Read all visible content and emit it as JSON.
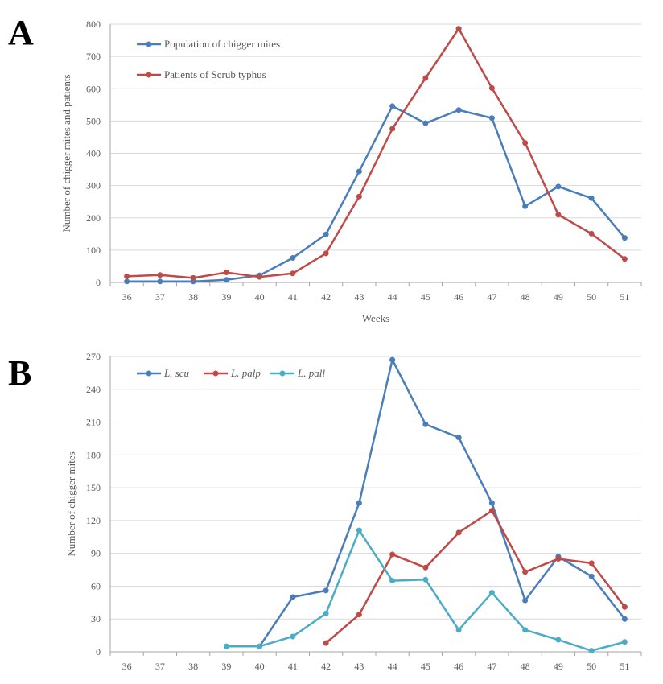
{
  "figure": {
    "panels": [
      "A",
      "B"
    ]
  },
  "chart_data": [
    {
      "type": "line",
      "panel": "A",
      "title": "",
      "xlabel": "Weeks",
      "ylabel": "Number of chigger mites and patients",
      "categories": [
        "36",
        "37",
        "38",
        "39",
        "40",
        "41",
        "42",
        "43",
        "44",
        "45",
        "46",
        "47",
        "48",
        "49",
        "50",
        "51"
      ],
      "ylim": [
        0,
        800
      ],
      "yticks": [
        0,
        100,
        200,
        300,
        400,
        500,
        600,
        700,
        800
      ],
      "grid": true,
      "legend": "top-left",
      "series": [
        {
          "name": "Population of chigger mites",
          "color": "#4a7ebb",
          "values": [
            3,
            3,
            3,
            8,
            22,
            76,
            149,
            344,
            546,
            493,
            534,
            509,
            236,
            297,
            261,
            138
          ]
        },
        {
          "name": "Patients of Scrub typhus",
          "color": "#be4b48",
          "values": [
            19,
            23,
            14,
            31,
            17,
            28,
            90,
            266,
            476,
            633,
            786,
            602,
            432,
            210,
            151,
            73
          ]
        }
      ]
    },
    {
      "type": "line",
      "panel": "B",
      "title": "",
      "xlabel": "",
      "ylabel": "Number of chigger mites",
      "categories": [
        "36",
        "37",
        "38",
        "39",
        "40",
        "41",
        "42",
        "43",
        "44",
        "45",
        "46",
        "47",
        "48",
        "49",
        "50",
        "51"
      ],
      "ylim": [
        0,
        270
      ],
      "yticks": [
        0,
        30,
        60,
        90,
        120,
        150,
        180,
        210,
        240,
        270
      ],
      "grid": true,
      "legend": "top-left",
      "series": [
        {
          "name": "L. scu",
          "color": "#4a7ebb",
          "values": [
            null,
            null,
            null,
            5,
            5,
            50,
            56,
            136,
            267,
            208,
            196,
            136,
            47,
            87,
            69,
            30
          ]
        },
        {
          "name": "L. palp",
          "color": "#be4b48",
          "values": [
            null,
            null,
            null,
            null,
            null,
            null,
            8,
            34,
            89,
            77,
            109,
            129,
            73,
            85,
            81,
            41
          ]
        },
        {
          "name": "L. pall",
          "color": "#4bacc6",
          "values": [
            null,
            null,
            null,
            5,
            5,
            14,
            35,
            111,
            65,
            66,
            20,
            54,
            20,
            11,
            1,
            9
          ]
        }
      ]
    }
  ]
}
